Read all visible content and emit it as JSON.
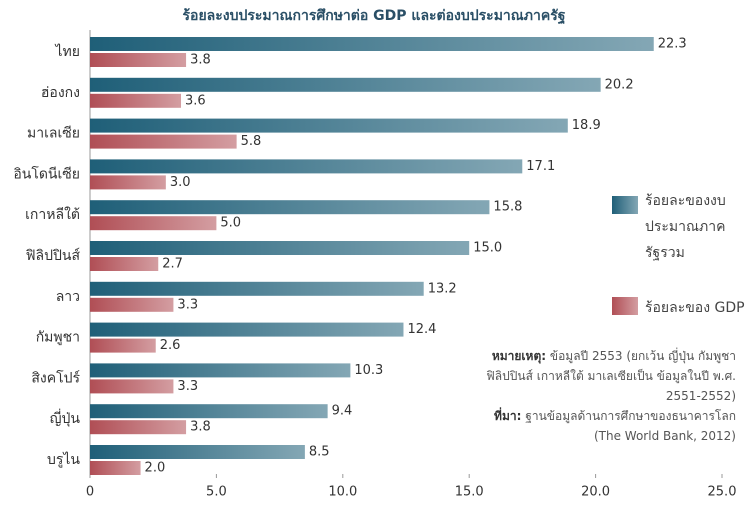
{
  "chart_data": {
    "type": "bar",
    "orientation": "horizontal",
    "title": "ร้อยละงบประมาณการศึกษาต่อ GDP และต่องบประมาณภาครัฐ",
    "categories": [
      "ไทย",
      "ฮ่องกง",
      "มาเลเซีย",
      "อินโดนีเซีย",
      "เกาหลีใต้",
      "ฟิลิปปินส์",
      "ลาว",
      "กัมพูชา",
      "สิงคโปร์",
      "ญี่ปุ่น",
      "บรูไน"
    ],
    "series": [
      {
        "name": "ร้อยละของงบประมาณภาครัฐรวม",
        "color": "#1f5f78",
        "values": [
          22.3,
          20.2,
          18.9,
          17.1,
          15.8,
          15.0,
          13.2,
          12.4,
          10.3,
          9.4,
          8.5
        ],
        "value_labels": [
          "22.3",
          "20.2",
          "18.9",
          "17.1",
          "15.8",
          "15.0",
          "13.2",
          "12.4",
          "10.3",
          "9.4",
          "8.5"
        ]
      },
      {
        "name": "ร้อยละของ GDP",
        "color": "#b04e55",
        "values": [
          3.8,
          3.6,
          5.8,
          3.0,
          5.0,
          2.7,
          3.3,
          2.6,
          3.3,
          3.8,
          2.0
        ],
        "value_labels": [
          "3.8",
          "3.6",
          "5.8",
          "3.0",
          "5.0",
          "2.7",
          "3.3",
          "2.6",
          "3.3",
          "3.8",
          "2.0"
        ]
      }
    ],
    "xlim": [
      0,
      25
    ],
    "xticks": [
      0,
      {
        "value": 5,
        "label": "5.0"
      },
      {
        "value": 10,
        "label": "10.0"
      },
      {
        "value": 15,
        "label": "15.0"
      },
      {
        "value": 20,
        "label": "20.0"
      },
      {
        "value": 25,
        "label": "25.0"
      }
    ],
    "annotations": {
      "note_label": "หมายเหตุ:",
      "note_text": "ข้อมูลปี 2553 (ยกเว้น ญี่ปุ่น กัมพูชา ฟิลิปปินส์ เกาหลีใต้ มาเลเซียเป็น ข้อมูลในปี พ.ศ. 2551-2552)",
      "source_label": "ที่มา:",
      "source_text": "ฐานข้อมูลด้านการศึกษาของธนาคารโลก (The World Bank, 2012)"
    }
  }
}
